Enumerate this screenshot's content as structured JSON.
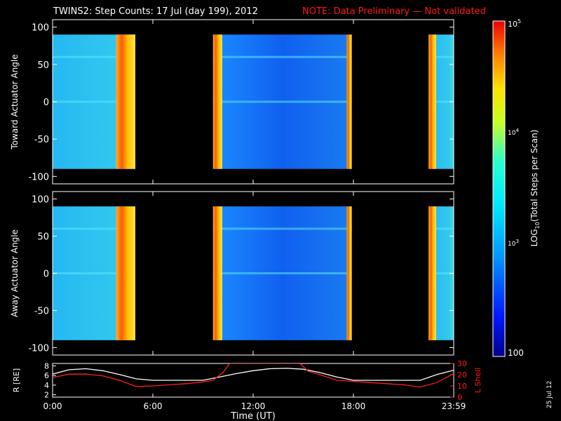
{
  "title": {
    "main": "TWINS2: Step Counts: 17 Jul (day 199), 2012",
    "note": "NOTE: Data Preliminary — Not validated"
  },
  "stamp": "25 Jul 12",
  "colors": {
    "background": "#000000",
    "axes": "#ffffff",
    "note": "#ff1a1a",
    "r_line": "#ffffff",
    "lshell_line": "#ff2020"
  },
  "chart_data": [
    {
      "type": "heatmap",
      "ylabel": "Toward Actuator Angle",
      "ylim": [
        -110,
        110
      ],
      "yticks": [
        "100",
        "50",
        "0",
        "-50",
        "-100"
      ],
      "ytick_values": [
        100,
        50,
        0,
        -50,
        -100
      ],
      "data_angle_range": [
        -90,
        90
      ],
      "data_intervals_hours": [
        [
          0,
          4.95
        ],
        [
          9.6,
          17.9
        ],
        [
          22.5,
          24
        ]
      ],
      "bright_bands_hours": [
        [
          3.8,
          4.95
        ],
        [
          9.6,
          10.15
        ],
        [
          17.6,
          17.9
        ],
        [
          22.5,
          22.95
        ]
      ],
      "shared_x": true
    },
    {
      "type": "heatmap",
      "ylabel": "Away Actuator Angle",
      "ylim": [
        -110,
        110
      ],
      "yticks": [
        "100",
        "50",
        "0",
        "-50",
        "-100"
      ],
      "ytick_values": [
        100,
        50,
        0,
        -50,
        -100
      ],
      "data_angle_range": [
        -90,
        90
      ],
      "data_intervals_hours": [
        [
          0,
          4.95
        ],
        [
          9.6,
          17.9
        ],
        [
          22.5,
          24
        ]
      ],
      "bright_bands_hours": [
        [
          3.8,
          4.95
        ],
        [
          9.6,
          10.15
        ],
        [
          17.6,
          17.9
        ],
        [
          22.5,
          22.95
        ]
      ],
      "shared_x": true
    },
    {
      "type": "line",
      "xlabel": "Time (UT)",
      "xlim": [
        0,
        24
      ],
      "xticks": [
        "0:00",
        "6:00",
        "12:00",
        "18:00",
        "23:59"
      ],
      "xtick_values": [
        0,
        6,
        12,
        18,
        24
      ],
      "ylabel": "R [RE]",
      "ylim": [
        1.5,
        8.5
      ],
      "yticks": [
        "8",
        "6",
        "4",
        "2"
      ],
      "ytick_values": [
        8,
        6,
        4,
        2
      ],
      "y2label": "L Shell",
      "y2lim": [
        0,
        30
      ],
      "y2ticks": [
        "30",
        "20",
        "10",
        "0"
      ],
      "y2tick_values": [
        30,
        20,
        10,
        0
      ],
      "series": [
        {
          "axis": "left",
          "x": [
            0,
            1,
            2,
            3,
            4,
            5,
            6,
            7,
            8,
            9,
            10,
            11,
            12,
            13,
            14,
            15,
            16,
            17,
            18,
            19,
            20,
            21,
            22,
            23,
            24
          ],
          "y": [
            6.3,
            7.2,
            7.4,
            7.0,
            6.2,
            5.3,
            5.0,
            5.0,
            5.0,
            5.0,
            5.7,
            6.4,
            7.0,
            7.4,
            7.5,
            7.3,
            6.6,
            5.7,
            5.0,
            5.0,
            5.0,
            5.0,
            5.0,
            6.2,
            7.1
          ]
        },
        {
          "axis": "right",
          "x": [
            0,
            1,
            2,
            3,
            4,
            5,
            6,
            7,
            8,
            9,
            9.6,
            10.2,
            10.6,
            14.8,
            15.3,
            16,
            16.6,
            17,
            18,
            19,
            20,
            21,
            22,
            23,
            24
          ],
          "y": [
            17.5,
            20.5,
            20.5,
            19,
            15,
            9.5,
            10,
            11,
            12,
            13.5,
            15,
            22,
            30,
            30,
            23,
            20,
            17,
            15,
            14,
            13,
            12,
            11,
            9,
            13,
            21
          ]
        }
      ]
    }
  ],
  "colorbar": {
    "label": "LOG10(Total Steps per Scan)",
    "scale": "log",
    "range": [
      100,
      100000
    ],
    "ticks": [
      "10^5",
      "10^4",
      "10^3",
      "100"
    ],
    "tick_values": [
      100000,
      10000,
      1000,
      100
    ]
  }
}
